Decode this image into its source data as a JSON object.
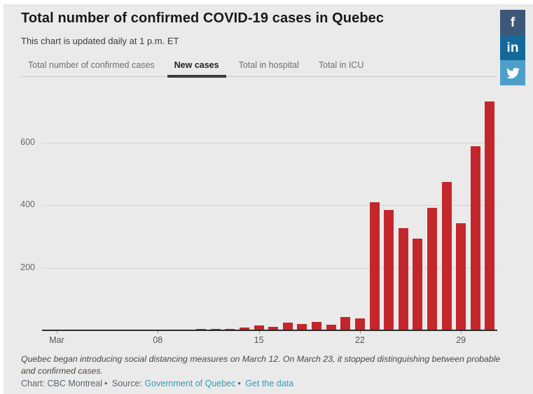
{
  "header": {
    "title": "Total number of confirmed COVID-19 cases in Quebec",
    "subtitle": "This chart is updated daily at 1 p.m. ET"
  },
  "tabs": [
    {
      "label": "Total number of confirmed cases",
      "active": false
    },
    {
      "label": "New cases",
      "active": true
    },
    {
      "label": "Total in hospital",
      "active": false
    },
    {
      "label": "Total in ICU",
      "active": false
    }
  ],
  "social_buttons": [
    {
      "name": "facebook",
      "glyph": "f",
      "color": "#3b5878"
    },
    {
      "name": "linkedin",
      "glyph": "in",
      "color": "#14699a"
    },
    {
      "name": "twitter",
      "glyph": "bird",
      "color": "#4d9ec9"
    }
  ],
  "chart_data": {
    "type": "bar",
    "title": "Total number of confirmed COVID-19 cases in Quebec — New cases",
    "xlabel": "",
    "ylabel": "",
    "bar_color": "#c3272c",
    "grid": "horizontal",
    "legend_position": "none",
    "ylim": [
      0,
      760
    ],
    "yticks": [
      200,
      400,
      600
    ],
    "x_axis_ticks": [
      {
        "index": 0,
        "label": "Mar"
      },
      {
        "index": 7,
        "label": "08"
      },
      {
        "index": 14,
        "label": "15"
      },
      {
        "index": 21,
        "label": "22"
      },
      {
        "index": 28,
        "label": "29"
      }
    ],
    "categories": [
      "Mar 1",
      "Mar 2",
      "Mar 3",
      "Mar 4",
      "Mar 5",
      "Mar 6",
      "Mar 7",
      "Mar 8",
      "Mar 9",
      "Mar 10",
      "Mar 11",
      "Mar 12",
      "Mar 13",
      "Mar 14",
      "Mar 15",
      "Mar 16",
      "Mar 17",
      "Mar 18",
      "Mar 19",
      "Mar 20",
      "Mar 21",
      "Mar 22",
      "Mar 23",
      "Mar 24",
      "Mar 25",
      "Mar 26",
      "Mar 27",
      "Mar 28",
      "Mar 29",
      "Mar 30",
      "Mar 31"
    ],
    "values": [
      0,
      0,
      0,
      0,
      0,
      0,
      0,
      0,
      0,
      0,
      4,
      4,
      5,
      8,
      16,
      11,
      24,
      20,
      27,
      18,
      42,
      38,
      409,
      385,
      326,
      293,
      392,
      474,
      342,
      590,
      732
    ]
  },
  "footer": {
    "note": "Quebec began introducing social distancing measures on March 12. On March 23, it stopped distinguishing between probable and confirmed cases.",
    "credit": "Chart: CBC Montreal",
    "separator": "•",
    "source_label": "Source:",
    "source_link": "Government of Quebec",
    "data_link": "Get the data"
  }
}
